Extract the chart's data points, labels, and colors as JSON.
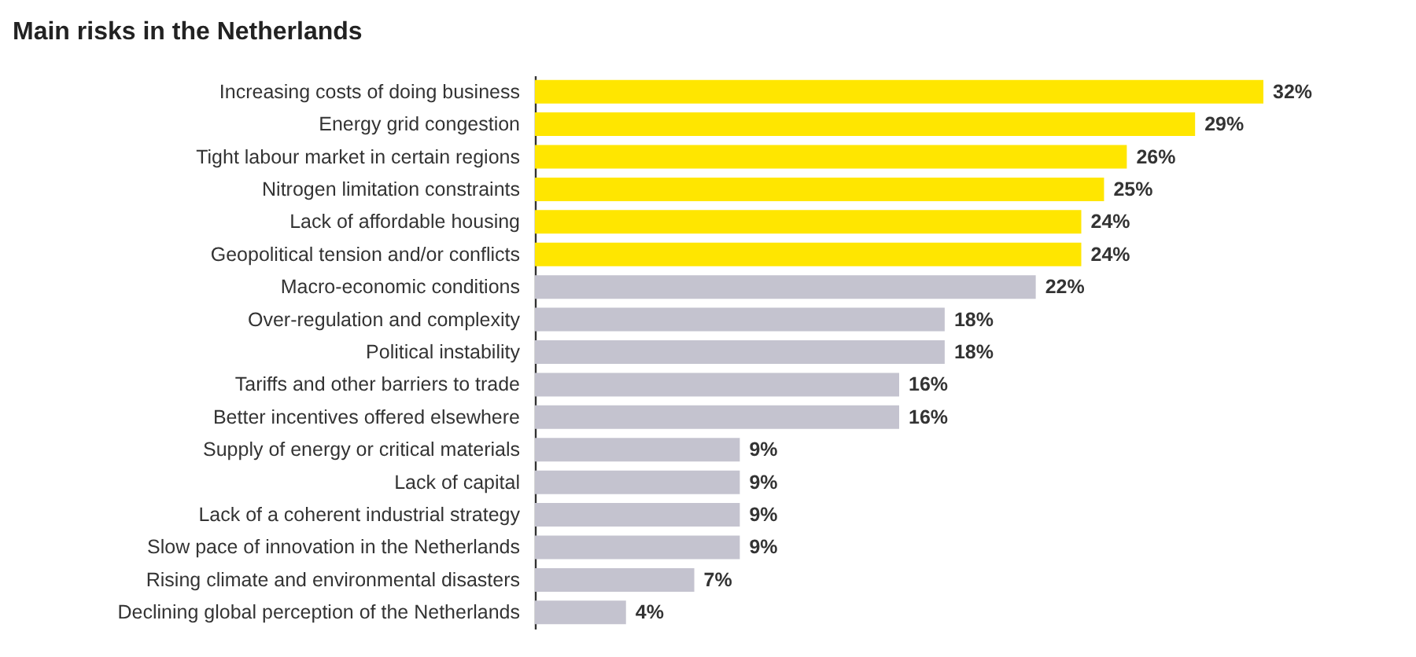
{
  "chart_data": {
    "type": "bar",
    "orientation": "horizontal",
    "title": "Main risks in the Netherlands",
    "categories": [
      "Increasing costs of doing business",
      "Energy grid congestion",
      "Tight labour market in certain regions",
      "Nitrogen limitation constraints",
      "Lack of affordable housing",
      "Geopolitical tension and/or conflicts",
      "Macro-economic conditions",
      "Over-regulation and complexity",
      "Political instability",
      "Tariffs and other barriers to trade",
      "Better incentives offered elsewhere",
      "Supply of energy or critical materials",
      "Lack of capital",
      "Lack of a coherent industrial strategy",
      "Slow pace of innovation in the Netherlands",
      "Rising climate and environmental disasters",
      "Declining global perception of the Netherlands"
    ],
    "values": [
      32,
      29,
      26,
      25,
      24,
      24,
      22,
      18,
      18,
      16,
      16,
      9,
      9,
      9,
      9,
      7,
      4
    ],
    "value_labels": [
      "32%",
      "29%",
      "26%",
      "25%",
      "24%",
      "24%",
      "22%",
      "18%",
      "18%",
      "16%",
      "16%",
      "9%",
      "9%",
      "9%",
      "9%",
      "7%",
      "4%"
    ],
    "colors": [
      "#ffe600",
      "#ffe600",
      "#ffe600",
      "#ffe600",
      "#ffe600",
      "#ffe600",
      "#c4c3cf",
      "#c4c3cf",
      "#c4c3cf",
      "#c4c3cf",
      "#c4c3cf",
      "#c4c3cf",
      "#c4c3cf",
      "#c4c3cf",
      "#c4c3cf",
      "#c4c3cf",
      "#c4c3cf"
    ]
  }
}
